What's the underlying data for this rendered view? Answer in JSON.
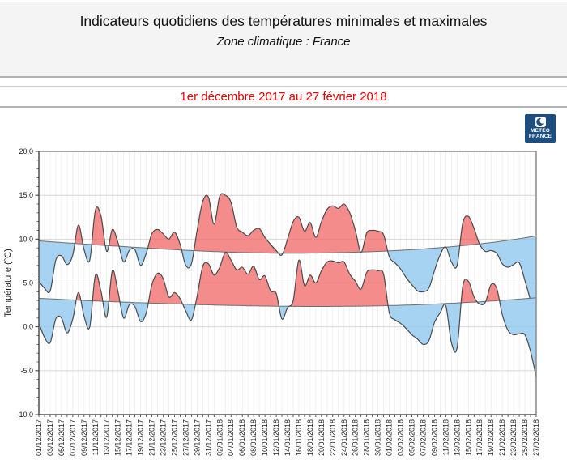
{
  "header": {
    "title": "Indicateurs quotidiens des températures minimales et maximales",
    "subtitle": "Zone climatique : France",
    "period": "1er décembre 2017 au 27 février 2018"
  },
  "logo": {
    "line1": "METEO",
    "line2": "FRANCE"
  },
  "colors": {
    "above_normal_fill": "#F48C8C",
    "below_normal_fill": "#A6D3F2",
    "actual_line": "#4A4A4A",
    "normal_line": "#6E6E6E",
    "grid_vertical": "#EBEBEB",
    "grid_horizontal": "#DDDDDD",
    "plot_border": "#909090",
    "axis_spine": "#3C3C3C",
    "tick": "#333333",
    "label_text": "#222222",
    "period_text": "#E60000",
    "header_bg": "#F4F4F4",
    "logo_bg": "#1D4E80"
  },
  "chart_data": {
    "type": "area",
    "title": "",
    "xlabel": "",
    "ylabel": "Température (°C)",
    "ylim": [
      -10,
      20
    ],
    "ytick_step": 5,
    "ytick_labels": [
      "20.0",
      "15.0",
      "10.0",
      "5.0",
      "0.0",
      "-5.0",
      "-10.0"
    ],
    "xtick_every": 2,
    "grid": true,
    "legend_position": "none",
    "dates": [
      "01/12/2017",
      "02/12/2017",
      "03/12/2017",
      "04/12/2017",
      "05/12/2017",
      "06/12/2017",
      "07/12/2017",
      "08/12/2017",
      "09/12/2017",
      "10/12/2017",
      "11/12/2017",
      "12/12/2017",
      "13/12/2017",
      "14/12/2017",
      "15/12/2017",
      "16/12/2017",
      "17/12/2017",
      "18/12/2017",
      "19/12/2017",
      "20/12/2017",
      "21/12/2017",
      "22/12/2017",
      "23/12/2017",
      "24/12/2017",
      "25/12/2017",
      "26/12/2017",
      "27/12/2017",
      "28/12/2017",
      "29/12/2017",
      "30/12/2017",
      "31/12/2017",
      "01/01/2018",
      "02/01/2018",
      "03/01/2018",
      "04/01/2018",
      "05/01/2018",
      "06/01/2018",
      "07/01/2018",
      "08/01/2018",
      "09/01/2018",
      "10/01/2018",
      "11/01/2018",
      "12/01/2018",
      "13/01/2018",
      "14/01/2018",
      "15/01/2018",
      "16/01/2018",
      "17/01/2018",
      "18/01/2018",
      "19/01/2018",
      "20/01/2018",
      "21/01/2018",
      "22/01/2018",
      "23/01/2018",
      "24/01/2018",
      "25/01/2018",
      "26/01/2018",
      "27/01/2018",
      "28/01/2018",
      "29/01/2018",
      "30/01/2018",
      "31/01/2018",
      "01/02/2018",
      "02/02/2018",
      "03/02/2018",
      "04/02/2018",
      "05/02/2018",
      "06/02/2018",
      "07/02/2018",
      "08/02/2018",
      "09/02/2018",
      "10/02/2018",
      "11/02/2018",
      "12/02/2018",
      "13/02/2018",
      "14/02/2018",
      "15/02/2018",
      "16/02/2018",
      "17/02/2018",
      "18/02/2018",
      "19/02/2018",
      "20/02/2018",
      "21/02/2018",
      "22/02/2018",
      "23/02/2018",
      "24/02/2018",
      "25/02/2018",
      "26/02/2018",
      "27/02/2018"
    ],
    "series": {
      "actual_max": [
        5.2,
        4.4,
        4.1,
        7.6,
        8.1,
        7.1,
        8.2,
        11.6,
        8.8,
        7.6,
        13.3,
        12.6,
        8.6,
        11.1,
        9.6,
        7.4,
        8.7,
        8.8,
        7.0,
        8.4,
        10.6,
        11.1,
        10.6,
        10.0,
        10.8,
        9.4,
        7.0,
        7.2,
        11.0,
        14.3,
        14.8,
        11.7,
        14.9,
        15.0,
        14.2,
        11.4,
        10.8,
        10.4,
        11.0,
        11.2,
        10.2,
        9.4,
        8.7,
        8.2,
        10.0,
        12.0,
        12.5,
        10.9,
        11.9,
        10.2,
        12.0,
        13.4,
        13.8,
        13.5,
        14.0,
        13.0,
        11.0,
        8.5,
        10.7,
        11.0,
        10.9,
        10.5,
        8.0,
        7.3,
        6.6,
        5.6,
        4.8,
        4.1,
        4.0,
        4.4,
        6.4,
        8.2,
        9.1,
        7.4,
        7.0,
        11.8,
        12.6,
        11.2,
        9.4,
        8.6,
        8.7,
        8.4,
        7.2,
        6.8,
        7.1,
        7.3,
        5.3,
        3.0,
        0.7
      ],
      "actual_min": [
        0.4,
        -1.2,
        -1.8,
        0.9,
        1.0,
        -0.7,
        0.9,
        3.9,
        1.2,
        0.0,
        5.9,
        4.0,
        1.1,
        6.4,
        4.0,
        1.0,
        2.5,
        2.3,
        0.6,
        1.6,
        4.8,
        6.1,
        5.5,
        3.4,
        3.9,
        3.2,
        1.8,
        0.8,
        3.5,
        6.9,
        7.2,
        5.9,
        6.8,
        8.5,
        7.6,
        6.5,
        6.8,
        6.0,
        6.9,
        5.4,
        5.8,
        4.1,
        3.8,
        0.9,
        2.2,
        3.0,
        7.6,
        4.7,
        5.9,
        5.0,
        6.4,
        7.4,
        7.5,
        7.3,
        7.4,
        6.0,
        5.2,
        4.3,
        6.2,
        6.5,
        6.4,
        6.0,
        1.6,
        0.8,
        0.4,
        -0.2,
        -0.9,
        -1.4,
        -2.0,
        -1.6,
        0.5,
        1.6,
        2.4,
        -1.8,
        -2.4,
        4.6,
        5.2,
        3.4,
        2.6,
        2.8,
        4.8,
        4.4,
        1.4,
        -0.4,
        -0.9,
        -0.8,
        -0.9,
        -2.8,
        -5.7
      ],
      "normal_max": [
        9.8,
        9.75,
        9.71,
        9.66,
        9.62,
        9.57,
        9.53,
        9.48,
        9.44,
        9.4,
        9.35,
        9.31,
        9.27,
        9.23,
        9.2,
        9.15,
        9.11,
        9.07,
        9.03,
        8.99,
        8.95,
        8.91,
        8.87,
        8.83,
        8.8,
        8.76,
        8.73,
        8.7,
        8.67,
        8.64,
        8.61,
        8.58,
        8.56,
        8.53,
        8.51,
        8.49,
        8.47,
        8.46,
        8.44,
        8.43,
        8.42,
        8.41,
        8.4,
        8.4,
        8.4,
        8.4,
        8.4,
        8.4,
        8.41,
        8.41,
        8.42,
        8.43,
        8.44,
        8.46,
        8.47,
        8.49,
        8.51,
        8.53,
        8.55,
        8.58,
        8.6,
        8.63,
        8.66,
        8.69,
        8.73,
        8.76,
        8.8,
        8.84,
        8.88,
        8.93,
        8.98,
        9.03,
        9.08,
        9.14,
        9.2,
        9.26,
        9.32,
        9.39,
        9.46,
        9.53,
        9.61,
        9.69,
        9.77,
        9.86,
        9.95,
        10.05,
        10.15,
        10.26,
        10.38
      ],
      "normal_min": [
        3.25,
        3.22,
        3.19,
        3.16,
        3.13,
        3.1,
        3.07,
        3.04,
        3.01,
        2.98,
        2.95,
        2.92,
        2.9,
        2.87,
        2.85,
        2.82,
        2.8,
        2.77,
        2.75,
        2.73,
        2.7,
        2.68,
        2.66,
        2.64,
        2.62,
        2.6,
        2.58,
        2.56,
        2.54,
        2.52,
        2.51,
        2.49,
        2.47,
        2.46,
        2.44,
        2.43,
        2.42,
        2.4,
        2.39,
        2.38,
        2.37,
        2.36,
        2.35,
        2.34,
        2.34,
        2.33,
        2.33,
        2.32,
        2.32,
        2.32,
        2.32,
        2.32,
        2.33,
        2.33,
        2.34,
        2.34,
        2.35,
        2.36,
        2.37,
        2.38,
        2.4,
        2.41,
        2.43,
        2.44,
        2.46,
        2.48,
        2.5,
        2.52,
        2.55,
        2.57,
        2.6,
        2.63,
        2.66,
        2.69,
        2.72,
        2.75,
        2.79,
        2.82,
        2.86,
        2.9,
        2.94,
        2.98,
        3.02,
        3.07,
        3.11,
        3.16,
        3.21,
        3.26,
        3.31
      ]
    }
  }
}
